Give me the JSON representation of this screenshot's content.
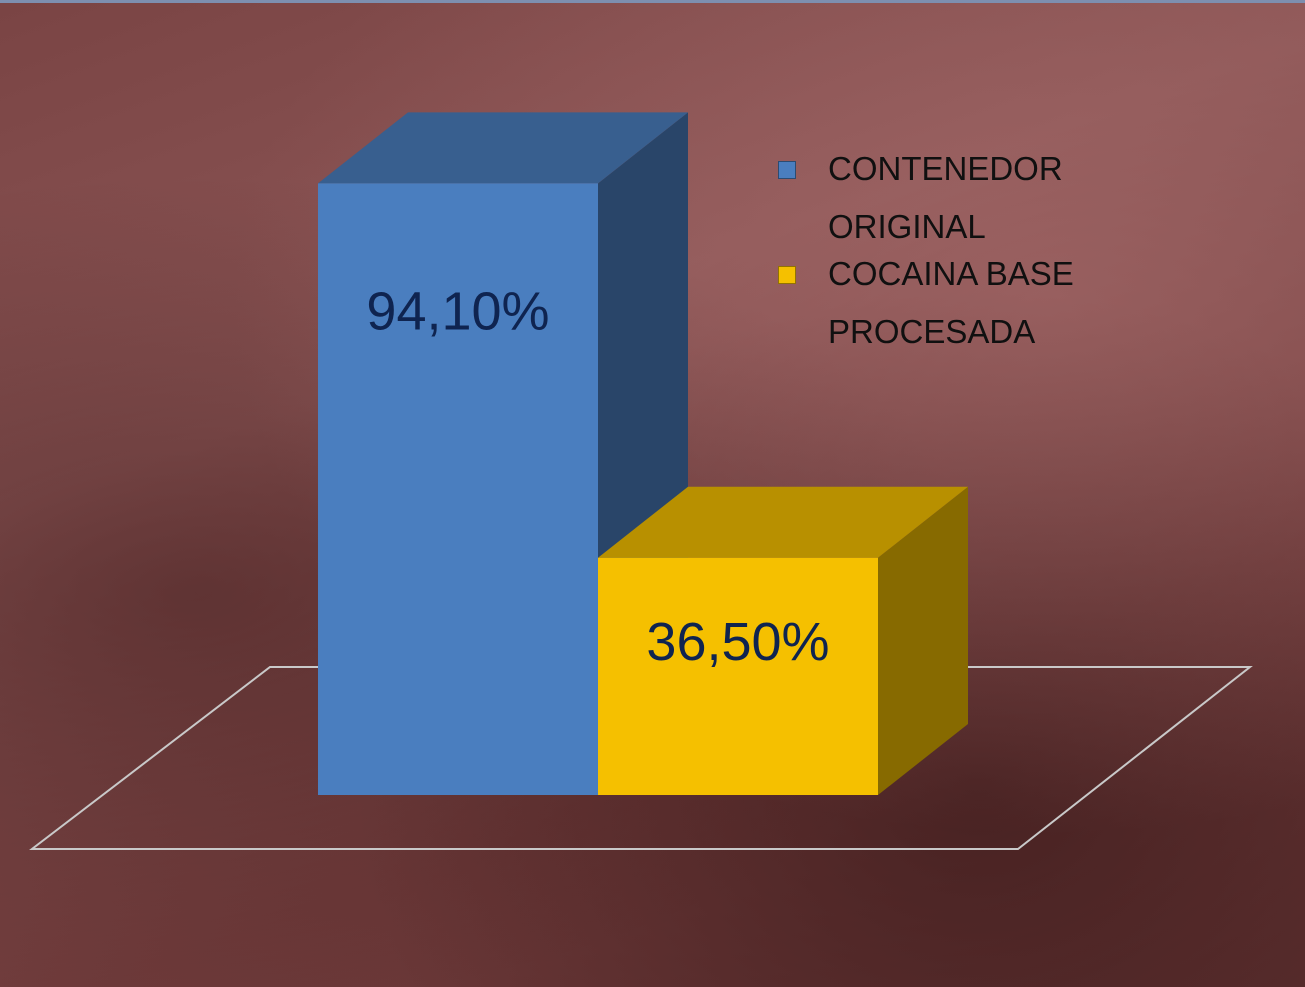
{
  "chart_data": {
    "type": "bar3d",
    "categories": [
      null
    ],
    "series": [
      {
        "name": "CONTENEDOR ORIGINAL",
        "color": "#4a7ebf",
        "values": [
          94.1
        ],
        "value_labels": [
          "94,10%"
        ]
      },
      {
        "name": "COCAINA BASE PROCESADA",
        "color": "#f5c000",
        "values": [
          36.5
        ],
        "value_labels": [
          "36,50%"
        ]
      }
    ],
    "legend": "top-right"
  }
}
